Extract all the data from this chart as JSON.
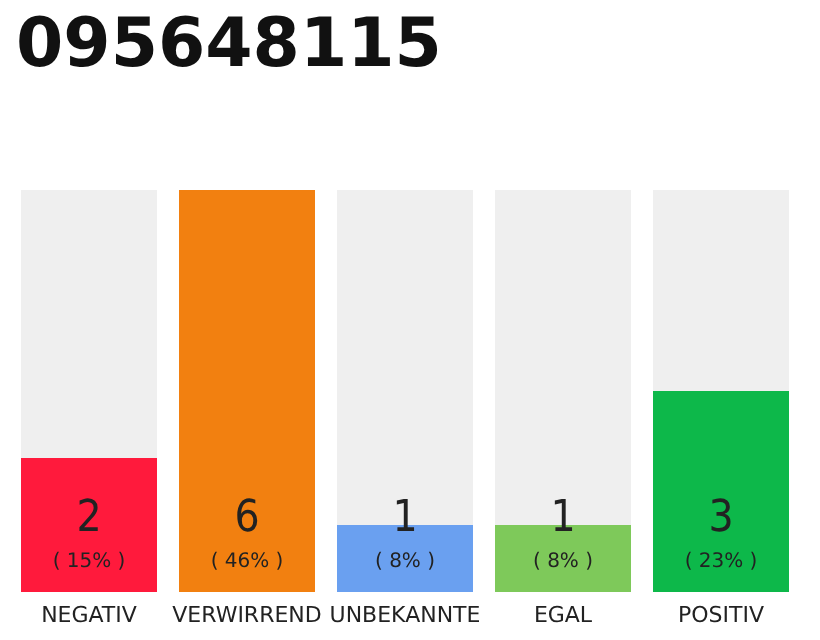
{
  "chart_data": {
    "type": "bar",
    "title": "095648115",
    "categories": [
      "NEGATIV",
      "VERWIRREND",
      "UNBEKANNTE",
      "EGAL",
      "POSITIV"
    ],
    "values": [
      2,
      6,
      1,
      1,
      3
    ],
    "colors": [
      "#ff1a3c",
      "#f28010",
      "#6aa0f0",
      "#7ec95a",
      "#0db84a"
    ],
    "value_labels": [
      "2\n( 15% )",
      "6\n( 46% )",
      "1\n( 8% )",
      "1\n( 8% )",
      "3\n( 23% )"
    ]
  }
}
